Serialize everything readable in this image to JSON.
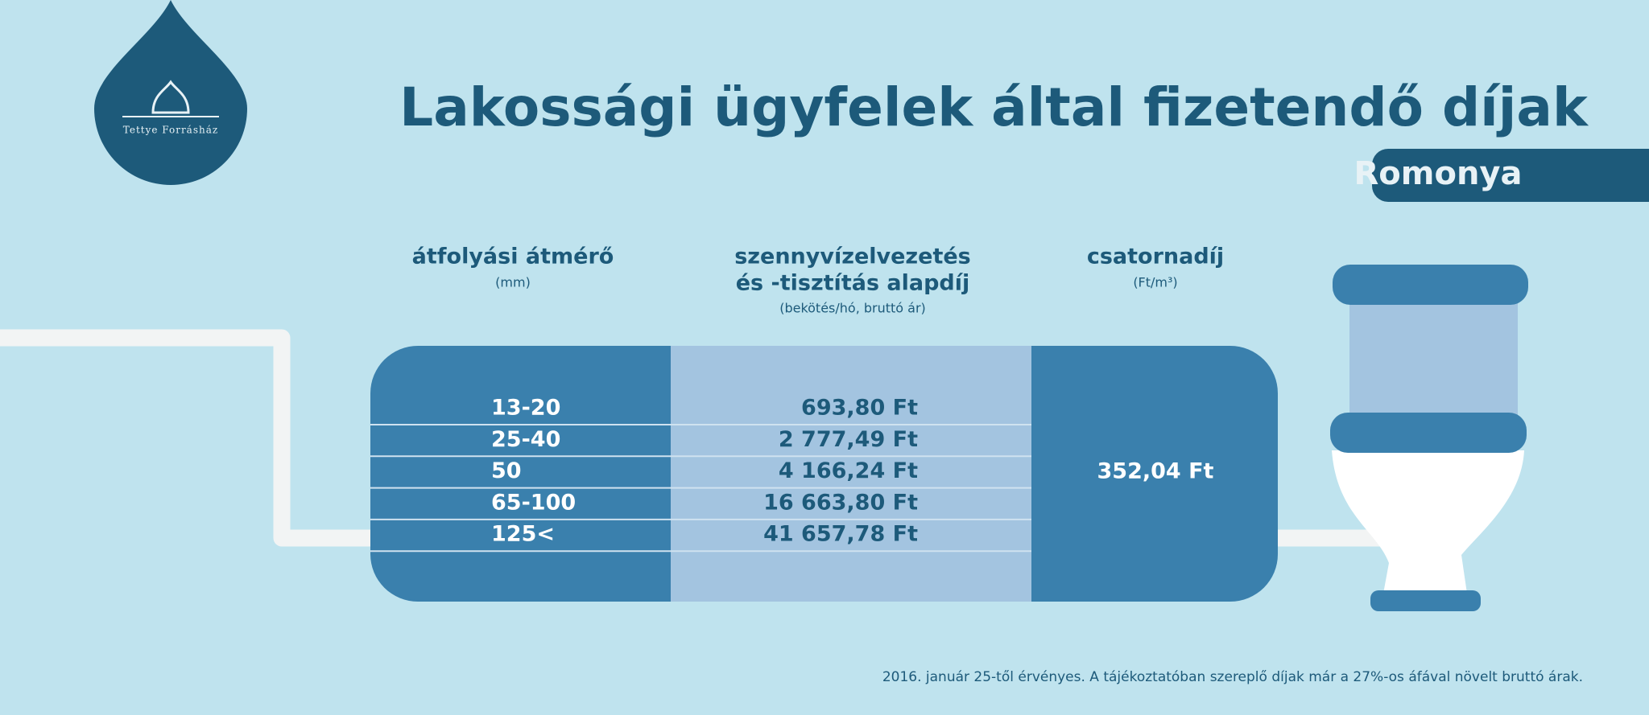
{
  "logo": {
    "text": "Tettye Forrásház"
  },
  "header": {
    "title": "Lakossági ügyfelek által fizetendő díjak",
    "location": "Romonya"
  },
  "table": {
    "columns": [
      {
        "title_lines": [
          "átfolyási átmérő"
        ],
        "subtitle": "(mm)"
      },
      {
        "title_lines": [
          "szennyvízelvezetés",
          "és -tisztítás alapdíj"
        ],
        "subtitle": "(bekötés/hó, bruttó ár)"
      },
      {
        "title_lines": [
          "csatornadíj"
        ],
        "subtitle": "(Ft/m³)"
      }
    ],
    "rows": [
      [
        "13-20",
        "693,80 Ft"
      ],
      [
        "25-40",
        "2 777,49 Ft"
      ],
      [
        "50",
        "4 166,24 Ft"
      ],
      [
        "65-100",
        "16 663,80 Ft"
      ],
      [
        "125<",
        "41 657,78 Ft"
      ]
    ],
    "sewer_fee": "352,04 Ft"
  },
  "footnote": "2016. január 25-től érvényes. A tájékoztatóban szereplő díjak már a 27%-os áfával növelt bruttó árak."
}
